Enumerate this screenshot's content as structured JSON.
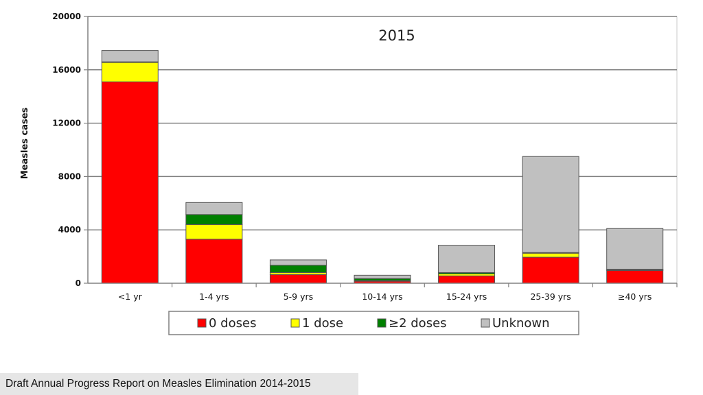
{
  "footer": {
    "text": "Draft Annual Progress Report on Measles Elimination 2014-2015"
  },
  "chart_data": {
    "type": "bar",
    "stacked": true,
    "title": "2015",
    "xlabel": "",
    "ylabel": "Measles cases",
    "ylim": [
      0,
      20000
    ],
    "yticks": [
      0,
      4000,
      8000,
      12000,
      16000,
      20000
    ],
    "grid": true,
    "legend_position": "bottom",
    "categories": [
      "<1 yr",
      "1-4 yrs",
      "5-9 yrs",
      "10-14 yrs",
      "15-24 yrs",
      "25-39 yrs",
      "≥40 yrs"
    ],
    "series": [
      {
        "name": "0 doses",
        "color": "#ff0000",
        "values": [
          15100,
          3300,
          650,
          150,
          550,
          1950,
          950
        ]
      },
      {
        "name": "1 dose",
        "color": "#ffff00",
        "values": [
          1450,
          1100,
          150,
          50,
          150,
          300,
          50
        ]
      },
      {
        "name": "≥2 doses",
        "color": "#008000",
        "values": [
          50,
          750,
          550,
          150,
          100,
          50,
          50
        ]
      },
      {
        "name": "Unknown",
        "color": "#c0c0c0",
        "values": [
          850,
          900,
          400,
          250,
          2050,
          7200,
          3050
        ]
      }
    ]
  }
}
